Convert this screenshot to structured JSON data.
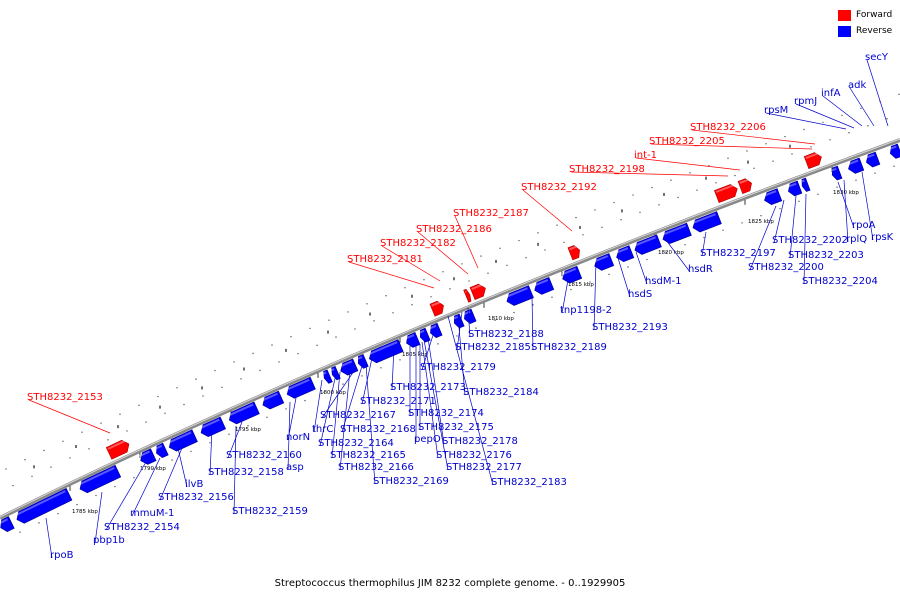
{
  "caption": "Streptococcus thermophilus JIM 8232 complete genome. - 0..1929905",
  "colors": {
    "forward": "#ff0000",
    "reverse": "#0000ff",
    "backbone": "#888888",
    "label_forward": "#ff0000",
    "label_reverse": "#0000cc"
  },
  "legend": [
    {
      "label": "Forward",
      "color": "#ff0000"
    },
    {
      "label": "Reverse",
      "color": "#0000ff"
    }
  ],
  "ticks": [
    "1785 kbp",
    "1790 kbp",
    "1795 kbp",
    "1800 kbp",
    "1805 kbp",
    "1810 kbp",
    "1815 kbp",
    "1820 kbp",
    "1825 kbp",
    "1830 kbp"
  ],
  "forward_genes": [
    "STH8232_2153",
    "STH8232_2181",
    "STH8232_2182",
    "STH8232_2186",
    "STH8232_2187",
    "STH8232_2192",
    "STH8232_2198",
    "int-1",
    "STH8232_2205",
    "STH8232_2206"
  ],
  "reverse_genes": [
    "rpoB",
    "pbp1b",
    "STH8232_2154",
    "mmuM-1",
    "ilvB",
    "STH8232_2156",
    "STH8232_2158",
    "STH8232_2159",
    "STH8232_2160",
    "asp",
    "norN",
    "thrC",
    "STH8232_2164",
    "STH8232_2165",
    "STH8232_2166",
    "STH8232_2167",
    "STH8232_2168",
    "STH8232_2169",
    "STH8232_2171",
    "STH8232_2173",
    "STH8232_2174",
    "pepO",
    "STH8232_2175",
    "STH8232_2176",
    "STH8232_2177",
    "STH8232_2178",
    "STH8232_2179",
    "STH8232_2183",
    "STH8232_2184",
    "STH8232_2185",
    "STH8232_2188",
    "STH8232_2189",
    "tnp1198-2",
    "STH8232_2193",
    "hsdS",
    "hsdM-1",
    "hsdR",
    "STH8232_2197",
    "STH8232_2200",
    "STH8232_2202",
    "STH8232_2203",
    "STH8232_2204",
    "rpoA",
    "rplQ",
    "rpsK",
    "secY",
    "adk",
    "infA",
    "rpmJ",
    "rpsM"
  ]
}
